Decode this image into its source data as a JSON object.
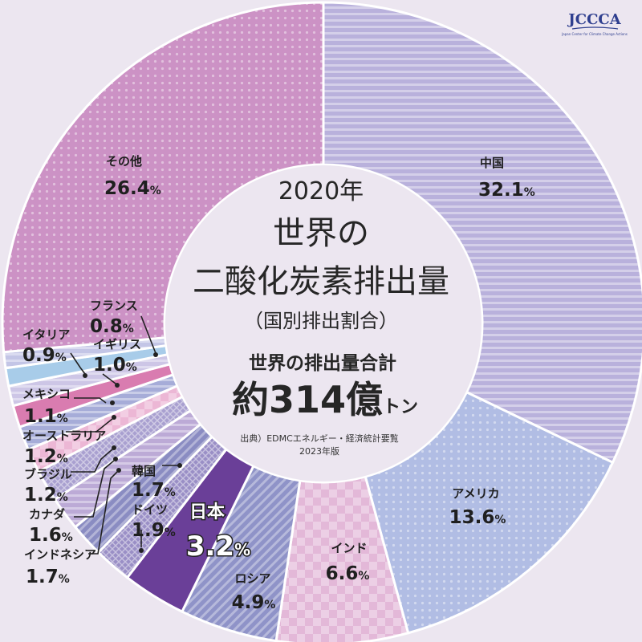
{
  "logo": {
    "text": "JCCCA",
    "sub": "Japan Center for Climate Change Actions"
  },
  "center": {
    "year": "2020年",
    "title_line1": "世界の",
    "title_line2": "二酸化炭素排出量",
    "subtitle": "（国別排出割合）",
    "total_label": "世界の排出量合計",
    "total_prefix": "約",
    "total_value": "314",
    "total_unit_kanji": "億",
    "total_unit": "トン",
    "source_line1": "出典）EDMCエネルギー・経済統計要覧",
    "source_line2": "2023年版"
  },
  "chart_data": {
    "type": "pie",
    "title": "2020年 世界の二酸化炭素排出量（国別排出割合）",
    "unit": "%",
    "categories": [
      "中国",
      "アメリカ",
      "インド",
      "ロシア",
      "日本",
      "ドイツ",
      "韓国",
      "インドネシア",
      "カナダ",
      "ブラジル",
      "オーストラリア",
      "メキシコ",
      "イギリス",
      "イタリア",
      "フランス",
      "その他"
    ],
    "values": [
      32.1,
      13.6,
      6.6,
      4.9,
      3.2,
      1.9,
      1.7,
      1.7,
      1.6,
      1.2,
      1.2,
      1.1,
      1.0,
      0.9,
      0.8,
      26.4
    ],
    "labels": [
      "32.1",
      "13.6",
      "6.6",
      "4.9",
      "3.2",
      "1.9",
      "1.7",
      "1.7",
      "1.6",
      "1.2",
      "1.2",
      "1.1",
      "1.0",
      "0.9",
      "0.8",
      "26.4"
    ],
    "colors": [
      "#b9b1dc",
      "#b1bde4",
      "#e3b8d8",
      "#8f93c8",
      "#6a3f98",
      "#9a8fc6",
      "#8a8cc2",
      "#bcaad6",
      "#a9a0d0",
      "#ecb7d5",
      "#a6acd8",
      "#d97cb0",
      "#cdc6e6",
      "#a8cce9",
      "#c3c5e6",
      "#cc92c5"
    ]
  }
}
